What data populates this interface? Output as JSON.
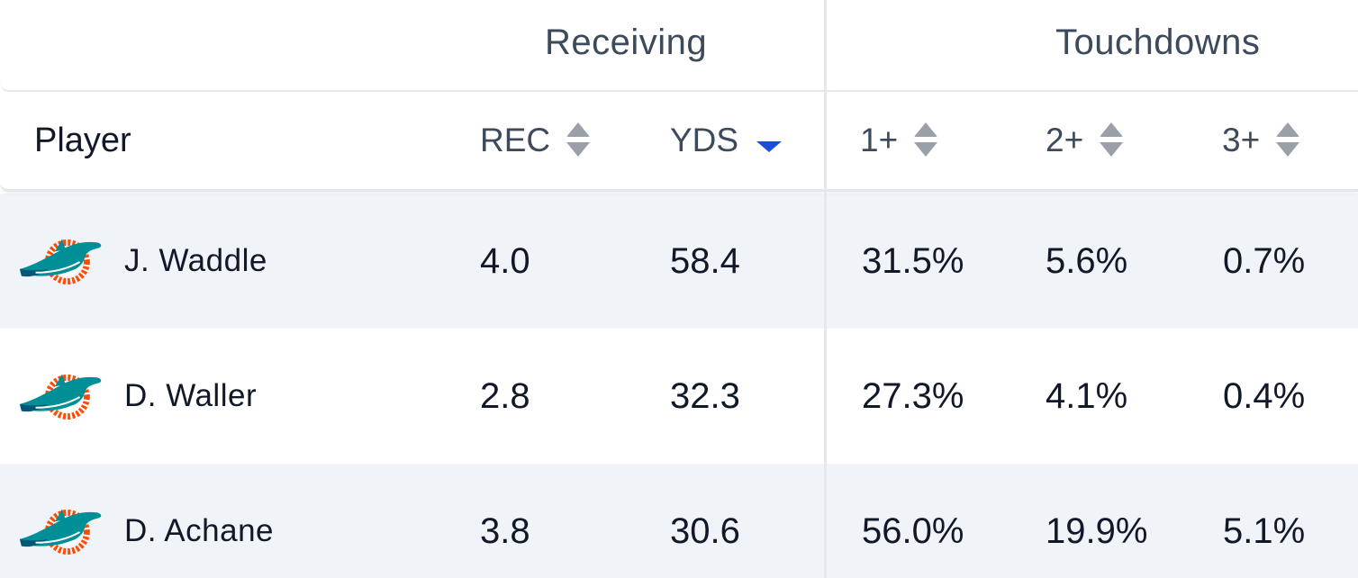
{
  "groups": {
    "receiving": "Receiving",
    "touchdowns": "Touchdowns"
  },
  "columns": {
    "player": "Player",
    "rec": "REC",
    "yds": "YDS",
    "td1": "1+",
    "td2": "2+",
    "td3": "3+"
  },
  "sort": {
    "active_column": "YDS",
    "direction": "descending"
  },
  "colors": {
    "header_text": "#3d4a5c",
    "active_sort": "#1d4ed8",
    "row_alt": "#f0f3f8",
    "dolphins_aqua": "#008e97",
    "dolphins_orange": "#fc4c02"
  },
  "rows": [
    {
      "team_icon": "miami-dolphins-logo",
      "player": "J. Waddle",
      "rec": "4.0",
      "yds": "58.4",
      "td1": "31.5%",
      "td2": "5.6%",
      "td3": "0.7%"
    },
    {
      "team_icon": "miami-dolphins-logo",
      "player": "D. Waller",
      "rec": "2.8",
      "yds": "32.3",
      "td1": "27.3%",
      "td2": "4.1%",
      "td3": "0.4%"
    },
    {
      "team_icon": "miami-dolphins-logo",
      "player": "D. Achane",
      "rec": "3.8",
      "yds": "30.6",
      "td1": "56.0%",
      "td2": "19.9%",
      "td3": "5.1%"
    }
  ]
}
